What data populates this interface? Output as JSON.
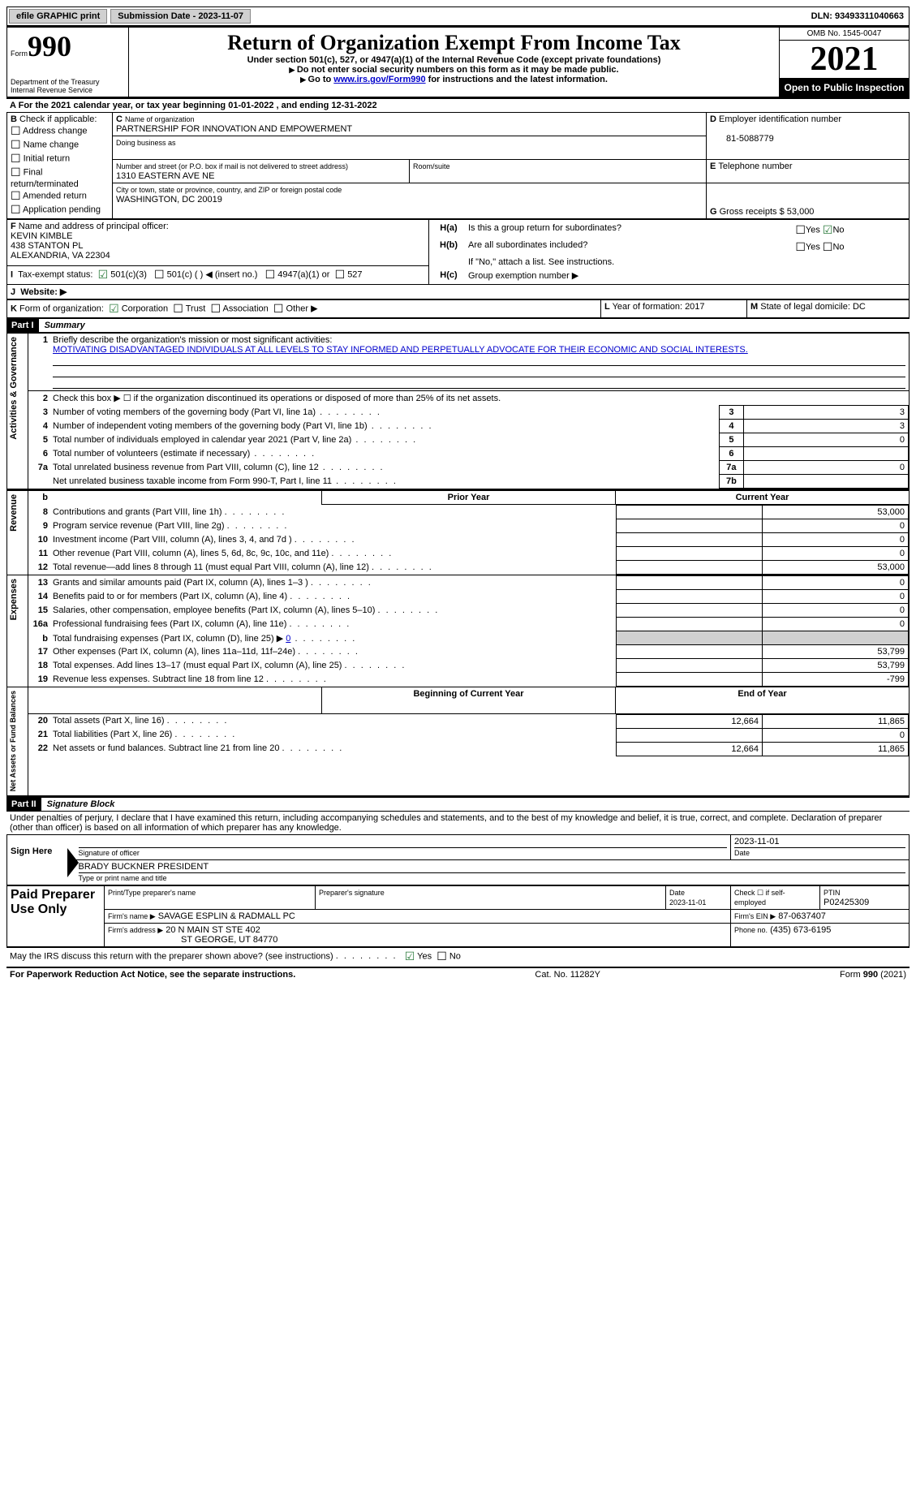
{
  "topbar": {
    "efile_label": "efile GRAPHIC print",
    "submission_label": "Submission Date - 2023-11-07",
    "dln_label": "DLN: 93493311040663"
  },
  "header": {
    "form_word": "Form",
    "form_num": "990",
    "dept": "Department of the Treasury",
    "irs": "Internal Revenue Service",
    "title": "Return of Organization Exempt From Income Tax",
    "sub1": "Under section 501(c), 527, or 4947(a)(1) of the Internal Revenue Code (except private foundations)",
    "sub2": "Do not enter social security numbers on this form as it may be made public.",
    "sub3_pre": "Go to ",
    "sub3_link": "www.irs.gov/Form990",
    "sub3_post": " for instructions and the latest information.",
    "omb": "OMB No. 1545-0047",
    "year": "2021",
    "open_pub": "Open to Public Inspection"
  },
  "A": {
    "text_pre": "For the 2021 calendar year, or tax year beginning ",
    "begin": "01-01-2022",
    "mid": " , and ending ",
    "end": "12-31-2022"
  },
  "B": {
    "label": "Check if applicable:",
    "opts": [
      "Address change",
      "Name change",
      "Initial return",
      "Final return/terminated",
      "Amended return",
      "Application pending"
    ]
  },
  "C": {
    "name_lbl": "Name of organization",
    "name": "PARTNERSHIP FOR INNOVATION AND EMPOWERMENT",
    "dba_lbl": "Doing business as",
    "street_lbl": "Number and street (or P.O. box if mail is not delivered to street address)",
    "room_lbl": "Room/suite",
    "street": "1310 EASTERN AVE NE",
    "city_lbl": "City or town, state or province, country, and ZIP or foreign postal code",
    "city": "WASHINGTON, DC  20019"
  },
  "D": {
    "lbl": "Employer identification number",
    "val": "81-5088779"
  },
  "E": {
    "lbl": "Telephone number",
    "val": ""
  },
  "G": {
    "lbl": "Gross receipts $",
    "val": "53,000"
  },
  "F": {
    "lbl": "Name and address of principal officer:",
    "name": "KEVIN KIMBLE",
    "addr1": "438 STANTON PL",
    "addr2": "ALEXANDRIA, VA  22304"
  },
  "H": {
    "a": "Is this a group return for subordinates?",
    "b": "Are all subordinates included?",
    "b_note": "If \"No,\" attach a list. See instructions.",
    "c": "Group exemption number ▶"
  },
  "I": {
    "lbl": "Tax-exempt status:",
    "opts": [
      "501(c)(3)",
      "501(c) (  ) ◀ (insert no.)",
      "4947(a)(1) or",
      "527"
    ]
  },
  "J": {
    "lbl": "Website: ▶"
  },
  "K": {
    "lbl": "Form of organization:",
    "opts": [
      "Corporation",
      "Trust",
      "Association",
      "Other ▶"
    ]
  },
  "L": {
    "lbl": "Year of formation:",
    "val": "2017"
  },
  "M": {
    "lbl": "State of legal domicile:",
    "val": "DC"
  },
  "part1": {
    "hdr": "Part I",
    "title": "Summary",
    "l1_lbl": "Briefly describe the organization's mission or most significant activities:",
    "l1_val": "MOTIVATING DISADVANTAGED INDIVIDUALS AT ALL LEVELS TO STAY INFORMED AND PERPETUALLY ADVOCATE FOR THEIR ECONOMIC AND SOCIAL INTERESTS.",
    "l2": "Check this box ▶ ☐ if the organization discontinued its operations or disposed of more than 25% of its net assets.",
    "rows_ag": [
      {
        "n": "3",
        "t": "Number of voting members of the governing body (Part VI, line 1a)",
        "box": "3",
        "v": "3"
      },
      {
        "n": "4",
        "t": "Number of independent voting members of the governing body (Part VI, line 1b)",
        "box": "4",
        "v": "3"
      },
      {
        "n": "5",
        "t": "Total number of individuals employed in calendar year 2021 (Part V, line 2a)",
        "box": "5",
        "v": "0"
      },
      {
        "n": "6",
        "t": "Total number of volunteers (estimate if necessary)",
        "box": "6",
        "v": ""
      },
      {
        "n": "7a",
        "t": "Total unrelated business revenue from Part VIII, column (C), line 12",
        "box": "7a",
        "v": "0"
      },
      {
        "n": "",
        "t": "Net unrelated business taxable income from Form 990-T, Part I, line 11",
        "box": "7b",
        "v": ""
      }
    ],
    "col_prior": "Prior Year",
    "col_curr": "Current Year",
    "rev": [
      {
        "n": "8",
        "t": "Contributions and grants (Part VIII, line 1h)",
        "p": "",
        "c": "53,000"
      },
      {
        "n": "9",
        "t": "Program service revenue (Part VIII, line 2g)",
        "p": "",
        "c": "0"
      },
      {
        "n": "10",
        "t": "Investment income (Part VIII, column (A), lines 3, 4, and 7d )",
        "p": "",
        "c": "0"
      },
      {
        "n": "11",
        "t": "Other revenue (Part VIII, column (A), lines 5, 6d, 8c, 9c, 10c, and 11e)",
        "p": "",
        "c": "0"
      },
      {
        "n": "12",
        "t": "Total revenue—add lines 8 through 11 (must equal Part VIII, column (A), line 12)",
        "p": "",
        "c": "53,000"
      }
    ],
    "exp": [
      {
        "n": "13",
        "t": "Grants and similar amounts paid (Part IX, column (A), lines 1–3 )",
        "p": "",
        "c": "0"
      },
      {
        "n": "14",
        "t": "Benefits paid to or for members (Part IX, column (A), line 4)",
        "p": "",
        "c": "0"
      },
      {
        "n": "15",
        "t": "Salaries, other compensation, employee benefits (Part IX, column (A), lines 5–10)",
        "p": "",
        "c": "0"
      },
      {
        "n": "16a",
        "t": "Professional fundraising fees (Part IX, column (A), line 11e)",
        "p": "",
        "c": "0"
      },
      {
        "n": "b",
        "t": "Total fundraising expenses (Part IX, column (D), line 25) ▶",
        "p": "shade",
        "c": "shade",
        "inline": "0"
      },
      {
        "n": "17",
        "t": "Other expenses (Part IX, column (A), lines 11a–11d, 11f–24e)",
        "p": "",
        "c": "53,799"
      },
      {
        "n": "18",
        "t": "Total expenses. Add lines 13–17 (must equal Part IX, column (A), line 25)",
        "p": "",
        "c": "53,799"
      },
      {
        "n": "19",
        "t": "Revenue less expenses. Subtract line 18 from line 12",
        "p": "",
        "c": "-799"
      }
    ],
    "col_begin": "Beginning of Current Year",
    "col_end": "End of Year",
    "net": [
      {
        "n": "20",
        "t": "Total assets (Part X, line 16)",
        "p": "12,664",
        "c": "11,865"
      },
      {
        "n": "21",
        "t": "Total liabilities (Part X, line 26)",
        "p": "",
        "c": "0"
      },
      {
        "n": "22",
        "t": "Net assets or fund balances. Subtract line 21 from line 20",
        "p": "12,664",
        "c": "11,865"
      }
    ],
    "vlabels": {
      "ag": "Activities & Governance",
      "rev": "Revenue",
      "exp": "Expenses",
      "net": "Net Assets or Fund Balances"
    }
  },
  "part2": {
    "hdr": "Part II",
    "title": "Signature Block",
    "decl": "Under penalties of perjury, I declare that I have examined this return, including accompanying schedules and statements, and to the best of my knowledge and belief, it is true, correct, and complete. Declaration of preparer (other than officer) is based on all information of which preparer has any knowledge.",
    "sign_here": "Sign Here",
    "sig_off": "Signature of officer",
    "sig_date": "2023-11-01",
    "date_lbl": "Date",
    "officer": "BRADY BUCKNER  PRESIDENT",
    "type_lbl": "Type or print name and title",
    "paid": "Paid Preparer Use Only",
    "pp_name_lbl": "Print/Type preparer's name",
    "pp_sig_lbl": "Preparer's signature",
    "pp_date_lbl": "Date",
    "pp_date": "2023-11-01",
    "pp_check_lbl": "Check ☐ if self-employed",
    "ptin_lbl": "PTIN",
    "ptin": "P02425309",
    "firm_name_lbl": "Firm's name   ▶",
    "firm_name": "SAVAGE ESPLIN & RADMALL PC",
    "firm_ein_lbl": "Firm's EIN ▶",
    "firm_ein": "87-0637407",
    "firm_addr_lbl": "Firm's address ▶",
    "firm_addr1": "20 N MAIN ST STE 402",
    "firm_addr2": "ST GEORGE, UT  84770",
    "phone_lbl": "Phone no.",
    "phone": "(435) 673-6195",
    "discuss": "May the IRS discuss this return with the preparer shown above? (see instructions)"
  },
  "footer": {
    "left": "For Paperwork Reduction Act Notice, see the separate instructions.",
    "mid": "Cat. No. 11282Y",
    "right": "Form 990 (2021)"
  }
}
